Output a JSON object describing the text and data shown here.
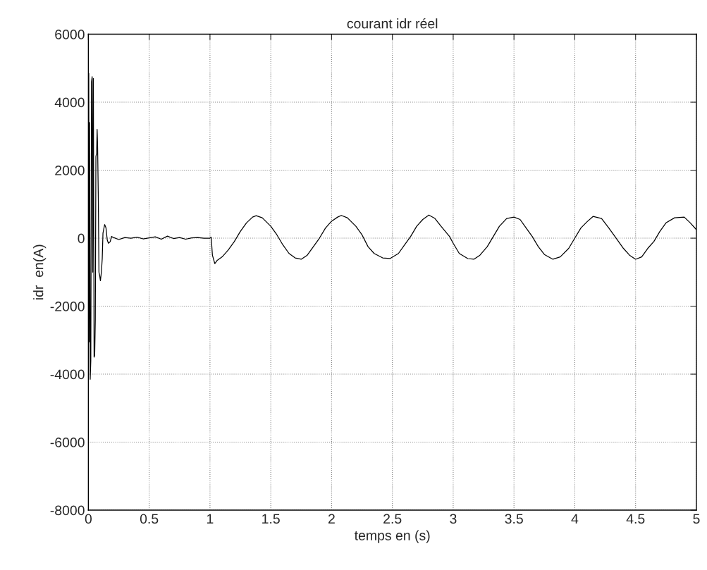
{
  "chart_data": {
    "type": "line",
    "title": "courant idr réel",
    "xlabel": "temps en (s)",
    "ylabel": "idr  en(A)",
    "xlim": [
      0,
      5
    ],
    "ylim": [
      -8000,
      6000
    ],
    "xticks": [
      0,
      0.5,
      1,
      1.5,
      2,
      2.5,
      3,
      3.5,
      4,
      4.5,
      5
    ],
    "yticks": [
      -8000,
      -6000,
      -4000,
      -2000,
      0,
      2000,
      4000,
      6000
    ],
    "grid": true,
    "marker": "none",
    "line_style": "solid",
    "series": [
      {
        "color": "#000000",
        "x": [
          0,
          0.003,
          0.006,
          0.01,
          0.015,
          0.02,
          0.026,
          0.031,
          0.036,
          0.041,
          0.047,
          0.052,
          0.057,
          0.062,
          0.068,
          0.072,
          0.076,
          0.082,
          0.087,
          0.093,
          0.099,
          0.107,
          0.114,
          0.12,
          0.134,
          0.145,
          0.155,
          0.165,
          0.18,
          0.19,
          0.2,
          0.25,
          0.3,
          0.35,
          0.4,
          0.45,
          0.5,
          0.55,
          0.6,
          0.65,
          0.7,
          0.75,
          0.8,
          0.85,
          0.9,
          0.95,
          1.0,
          1.01,
          1.02,
          1.04,
          1.06,
          1.1,
          1.15,
          1.2,
          1.25,
          1.3,
          1.35,
          1.38,
          1.43,
          1.5,
          1.55,
          1.6,
          1.65,
          1.7,
          1.75,
          1.8,
          1.85,
          1.9,
          1.95,
          2.0,
          2.05,
          2.08,
          2.13,
          2.2,
          2.25,
          2.3,
          2.35,
          2.42,
          2.48,
          2.55,
          2.6,
          2.65,
          2.7,
          2.75,
          2.8,
          2.85,
          2.9,
          2.97,
          3.0,
          3.05,
          3.12,
          3.17,
          3.22,
          3.28,
          3.33,
          3.38,
          3.44,
          3.5,
          3.55,
          3.6,
          3.65,
          3.7,
          3.75,
          3.82,
          3.88,
          3.95,
          4.0,
          4.05,
          4.1,
          4.15,
          4.22,
          4.28,
          4.33,
          4.4,
          4.45,
          4.5,
          4.55,
          4.6,
          4.65,
          4.7,
          4.75,
          4.82,
          4.9,
          4.95,
          5.0
        ],
        "values": [
          0,
          4850,
          -3050,
          3400,
          -4150,
          -3600,
          4600,
          4750,
          -1000,
          4700,
          -3500,
          -3450,
          -2400,
          2400,
          2500,
          3200,
          2700,
          1100,
          -1000,
          -1100,
          -1250,
          -1000,
          -600,
          150,
          400,
          300,
          -50,
          -150,
          -100,
          50,
          30,
          -40,
          20,
          0,
          30,
          -20,
          10,
          40,
          -30,
          60,
          -10,
          20,
          -30,
          10,
          20,
          0,
          0,
          30,
          -500,
          -750,
          -650,
          -550,
          -350,
          -100,
          200,
          450,
          620,
          660,
          600,
          350,
          100,
          -200,
          -450,
          -580,
          -620,
          -500,
          -250,
          0,
          300,
          500,
          620,
          670,
          600,
          350,
          100,
          -250,
          -450,
          -580,
          -600,
          -450,
          -200,
          50,
          350,
          550,
          680,
          580,
          350,
          50,
          -150,
          -450,
          -600,
          -620,
          -500,
          -250,
          50,
          350,
          580,
          620,
          550,
          300,
          50,
          -250,
          -480,
          -620,
          -550,
          -300,
          0,
          300,
          480,
          640,
          580,
          300,
          50,
          -300,
          -500,
          -620,
          -550,
          -300,
          -100,
          200,
          450,
          600,
          620,
          450,
          250
        ]
      }
    ]
  }
}
